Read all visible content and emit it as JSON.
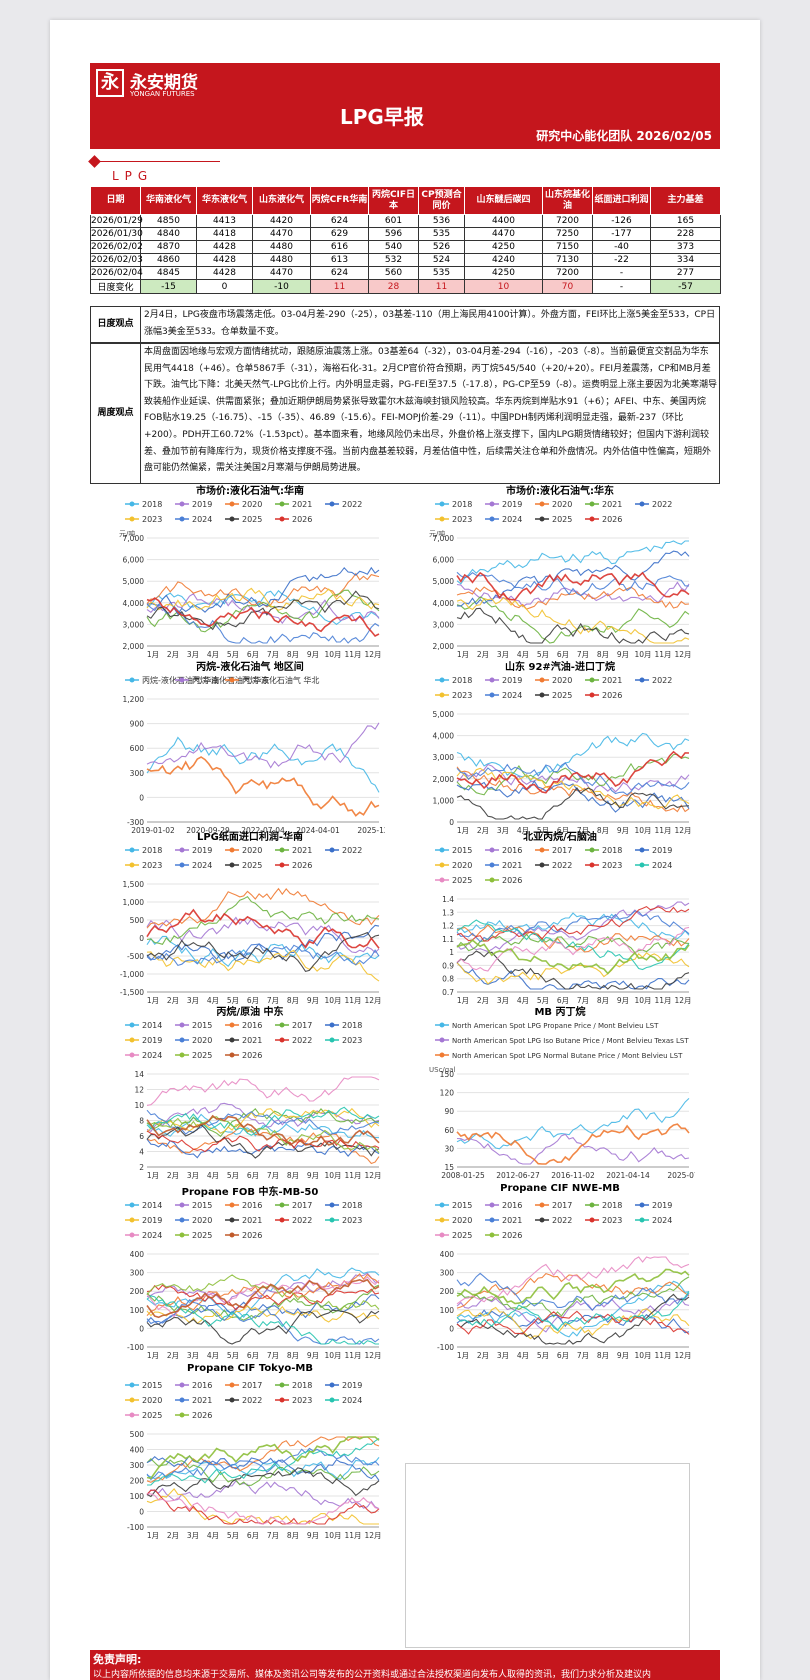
{
  "header": {
    "logo_mark": "永",
    "logo_cn": "永安期货",
    "logo_en": "YONGAN FUTURES",
    "title": "LPG早报",
    "subtitle": "研究中心能化团队 2026/02/05"
  },
  "section_label": "LPG",
  "table": {
    "columns": [
      "日期",
      "华南液化气",
      "华东液化气",
      "山东液化气",
      "丙烷CFR华南",
      "丙烷CIF日本",
      "CP预测合同价",
      "山东醚后碳四",
      "山东烷基化油",
      "纸面进口利润",
      "主力基差"
    ],
    "rows": [
      [
        "2026/01/29",
        "4850",
        "4413",
        "4420",
        "624",
        "601",
        "536",
        "4400",
        "7200",
        "-126",
        "165"
      ],
      [
        "2026/01/30",
        "4840",
        "4418",
        "4470",
        "629",
        "596",
        "535",
        "4470",
        "7250",
        "-177",
        "228"
      ],
      [
        "2026/02/02",
        "4870",
        "4428",
        "4480",
        "616",
        "540",
        "526",
        "4250",
        "7150",
        "-40",
        "373"
      ],
      [
        "2026/02/03",
        "4860",
        "4428",
        "4480",
        "613",
        "532",
        "524",
        "4240",
        "7130",
        "-22",
        "334"
      ],
      [
        "2026/02/04",
        "4845",
        "4428",
        "4470",
        "624",
        "560",
        "535",
        "4250",
        "7200",
        "-",
        "277"
      ]
    ],
    "change_row": [
      "日度变化",
      "-15",
      "0",
      "-10",
      "11",
      "28",
      "11",
      "10",
      "70",
      "-",
      "-57"
    ],
    "change_style": [
      "",
      "g",
      "",
      "g",
      "r",
      "r",
      "r",
      "r",
      "r",
      "",
      "g"
    ]
  },
  "daily_view": {
    "label": "日度观点",
    "text": "2月4日，LPG夜盘市场震荡走低。03-04月差-290（-25），03基差-110（用上海民用4100计算）。外盘方面，FEI环比上涨5美金至533，CP日涨幅3美金至533。仓单数量不变。"
  },
  "weekly_view": {
    "label": "周度观点",
    "text": "本周盘面因地缘与宏观方面情绪扰动，跟随原油震荡上涨。03基差64（-32），03-04月差-294（-16），-203（-8）。当前最便宜交割品为华东民用气4418（+46）。仓单5867手（-31），海裕石化-31。2月CP官价符合预期，丙丁烷545/540（+20/+20）。FEI月差震荡，CP和MB月差下跌。油气比下降：北美天然气-LPG比价上行。内外明显走弱，PG-FEI至37.5（-17.8），PG-CP至59（-8）。运费明显上涨主要因为北美寒潮导致装船作业延误、供需面紧张；叠加近期伊朗局势紧张导致霍尔木兹海峡封锁风险较高。华东丙烷到岸贴水91（+6）；AFEI、中东、美国丙烷FOB贴水19.25（-16.75）、-15（-35）、46.89（-15.6）。FEI-MOPJ价差-29（-11）。中国PDH制丙烯利润明显走强，最新-237（环比+200）。PDH开工60.72%（-1.53pct）。基本面来看，地缘风险仍未出尽，外盘价格上涨支撑下，国内LPG期货情绪较好；但国内下游利润较差、叠加节前有降库行为，现货价格支撑度不强。当前内盘基差较弱，月差估值中性，后续需关注仓单和外盘情况。内外估值中性偏高，短期外盘可能仍然偏紧，需关注美国2月寒潮与伊朗局势进展。"
  },
  "colors": {
    "brand": "#c5161d"
  },
  "charts": [
    {
      "title": "市场价:液化石油气:华南",
      "unit": "元/吨",
      "yticks": [
        "7,000",
        "6,000",
        "5,000",
        "4,000",
        "3,000",
        "2,000"
      ],
      "xticks": [
        "1月",
        "2月",
        "3月",
        "4月",
        "5月",
        "6月",
        "7月",
        "8月",
        "9月",
        "10月",
        "11月",
        "12月"
      ],
      "legend": [
        "2018",
        "2019",
        "2020",
        "2021",
        "2022",
        "2023",
        "2024",
        "2025",
        "2026"
      ]
    },
    {
      "title": "市场价:液化石油气:华东",
      "unit": "元/吨",
      "yticks": [
        "7,000",
        "6,000",
        "5,000",
        "4,000",
        "3,000",
        "2,000"
      ],
      "xticks": [
        "1月",
        "2月",
        "3月",
        "4月",
        "5月",
        "6月",
        "7月",
        "8月",
        "9月",
        "10月",
        "11月",
        "12月"
      ],
      "legend": [
        "2018",
        "2019",
        "2020",
        "2021",
        "2022",
        "2023",
        "2024",
        "2025",
        "2026"
      ]
    },
    {
      "title": "丙烷-液化石油气 地区间",
      "unit": "",
      "yticks": [
        "1,200",
        "900",
        "600",
        "300",
        "0",
        "-300"
      ],
      "xticks": [
        "2019-01-02",
        "2020-09-29",
        "2022-07-04",
        "2024-04-01",
        "2025-12"
      ],
      "legend": [
        "丙烷-液化石油气 华南",
        "丙烷-液化石油气 华东",
        "丙烷-液化石油气 华北"
      ]
    },
    {
      "title": "山东 92#汽油-进口丁烷",
      "unit": "",
      "yticks": [
        "5,000",
        "4,000",
        "3,000",
        "2,000",
        "1,000",
        "0"
      ],
      "xticks": [
        "1月",
        "2月",
        "3月",
        "4月",
        "5月",
        "6月",
        "7月",
        "8月",
        "9月",
        "10月",
        "11月",
        "12月"
      ],
      "legend": [
        "2018",
        "2019",
        "2020",
        "2021",
        "2022",
        "2023",
        "2024",
        "2025",
        "2026"
      ]
    },
    {
      "title": "LPG纸面进口利润-华南",
      "unit": "",
      "yticks": [
        "1,500",
        "1,000",
        "500",
        "0",
        "-500",
        "-1,000",
        "-1,500"
      ],
      "xticks": [
        "1月",
        "2月",
        "3月",
        "4月",
        "5月",
        "6月",
        "7月",
        "8月",
        "9月",
        "10月",
        "11月",
        "12月"
      ],
      "legend": [
        "2018",
        "2019",
        "2020",
        "2021",
        "2022",
        "2023",
        "2024",
        "2025",
        "2026"
      ]
    },
    {
      "title": "北亚丙烷/石脑油",
      "unit": "",
      "yticks": [
        "1.4",
        "1.3",
        "1.2",
        "1.1",
        "1",
        "0.9",
        "0.8",
        "0.7"
      ],
      "xticks": [
        "1月",
        "2月",
        "3月",
        "4月",
        "5月",
        "6月",
        "7月",
        "8月",
        "9月",
        "10月",
        "11月",
        "12月"
      ],
      "legend": [
        "2015",
        "2016",
        "2017",
        "2018",
        "2019",
        "2020",
        "2021",
        "2022",
        "2023",
        "2024",
        "2025",
        "2026"
      ]
    },
    {
      "title": "丙烷/原油 中东",
      "unit": "",
      "yticks": [
        "14",
        "12",
        "10",
        "8",
        "6",
        "4",
        "2"
      ],
      "xticks": [
        "1月",
        "2月",
        "3月",
        "4月",
        "5月",
        "6月",
        "7月",
        "8月",
        "9月",
        "10月",
        "11月",
        "12月"
      ],
      "legend": [
        "2014",
        "2015",
        "2016",
        "2017",
        "2018",
        "2019",
        "2020",
        "2021",
        "2022",
        "2023",
        "2024",
        "2025",
        "2026"
      ]
    },
    {
      "title": "MB 丙丁烷",
      "unit": "USc/gal",
      "yticks": [
        "150",
        "120",
        "90",
        "60",
        "30",
        "15"
      ],
      "xticks": [
        "2008-01-25",
        "2012-06-27",
        "2016-11-02",
        "2021-04-14",
        "2025-07"
      ],
      "legend": [
        "North American Spot LPG Propane Price / Mont Belvieu LST",
        "North American Spot LPG Iso Butane Price / Mont Belvieu Texas LST",
        "North American Spot LPG Normal Butane Price / Mont Belvieu LST"
      ]
    },
    {
      "title": "Propane FOB 中东-MB-50",
      "unit": "",
      "yticks": [
        "400",
        "300",
        "200",
        "100",
        "0",
        "-100"
      ],
      "xticks": [
        "1月",
        "2月",
        "3月",
        "4月",
        "5月",
        "6月",
        "7月",
        "8月",
        "9月",
        "10月",
        "11月",
        "12月"
      ],
      "legend": [
        "2014",
        "2015",
        "2016",
        "2017",
        "2018",
        "2019",
        "2020",
        "2021",
        "2022",
        "2023",
        "2024",
        "2025",
        "2026"
      ]
    },
    {
      "title": "Propane CIF NWE-MB",
      "unit": "",
      "yticks": [
        "400",
        "300",
        "200",
        "100",
        "0",
        "-100"
      ],
      "xticks": [
        "1月",
        "2月",
        "3月",
        "4月",
        "5月",
        "6月",
        "7月",
        "8月",
        "9月",
        "10月",
        "11月",
        "12月"
      ],
      "legend": [
        "2015",
        "2016",
        "2017",
        "2018",
        "2019",
        "2020",
        "2021",
        "2022",
        "2023",
        "2024",
        "2025",
        "2026"
      ]
    },
    {
      "title": "Propane CIF Tokyo-MB",
      "unit": "",
      "yticks": [
        "500",
        "400",
        "300",
        "200",
        "100",
        "0",
        "-100"
      ],
      "xticks": [
        "1月",
        "2月",
        "3月",
        "4月",
        "5月",
        "6月",
        "7月",
        "8月",
        "9月",
        "10月",
        "11月",
        "12月"
      ],
      "legend": [
        "2015",
        "2016",
        "2017",
        "2018",
        "2019",
        "2020",
        "2021",
        "2022",
        "2023",
        "2024",
        "2025",
        "2026"
      ]
    }
  ],
  "disclaimer": {
    "title": "免责声明:",
    "text": "以上内容所依据的信息均来源于交易所、媒体及资讯公司等发布的公开资料或通过合法授权渠道向发布人取得的资讯，我们力求分析及建议内"
  }
}
